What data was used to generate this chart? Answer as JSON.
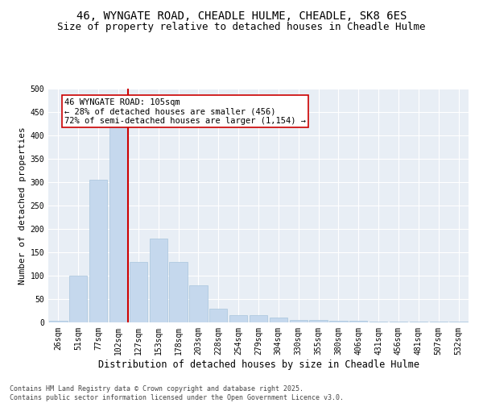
{
  "title": "46, WYNGATE ROAD, CHEADLE HULME, CHEADLE, SK8 6ES",
  "subtitle": "Size of property relative to detached houses in Cheadle Hulme",
  "xlabel": "Distribution of detached houses by size in Cheadle Hulme",
  "ylabel": "Number of detached properties",
  "categories": [
    "26sqm",
    "51sqm",
    "77sqm",
    "102sqm",
    "127sqm",
    "153sqm",
    "178sqm",
    "203sqm",
    "228sqm",
    "254sqm",
    "279sqm",
    "304sqm",
    "330sqm",
    "355sqm",
    "380sqm",
    "406sqm",
    "431sqm",
    "456sqm",
    "481sqm",
    "507sqm",
    "532sqm"
  ],
  "values": [
    3,
    100,
    305,
    420,
    130,
    180,
    130,
    80,
    30,
    15,
    15,
    10,
    5,
    5,
    3,
    3,
    1,
    1,
    1,
    1,
    1
  ],
  "bar_color": "#c5d8ed",
  "bar_edge_color": "#a8c4dc",
  "vline_x": 3.5,
  "vline_color": "#cc0000",
  "annotation_text": "46 WYNGATE ROAD: 105sqm\n← 28% of detached houses are smaller (456)\n72% of semi-detached houses are larger (1,154) →",
  "annotation_box_color": "#ffffff",
  "annotation_box_edge": "#cc0000",
  "ylim": [
    0,
    500
  ],
  "yticks": [
    0,
    50,
    100,
    150,
    200,
    250,
    300,
    350,
    400,
    450,
    500
  ],
  "background_color": "#e8eef5",
  "footer_text": "Contains HM Land Registry data © Crown copyright and database right 2025.\nContains public sector information licensed under the Open Government Licence v3.0.",
  "title_fontsize": 10,
  "subtitle_fontsize": 9,
  "xlabel_fontsize": 8.5,
  "ylabel_fontsize": 8,
  "tick_fontsize": 7,
  "annotation_fontsize": 7.5,
  "footer_fontsize": 6
}
